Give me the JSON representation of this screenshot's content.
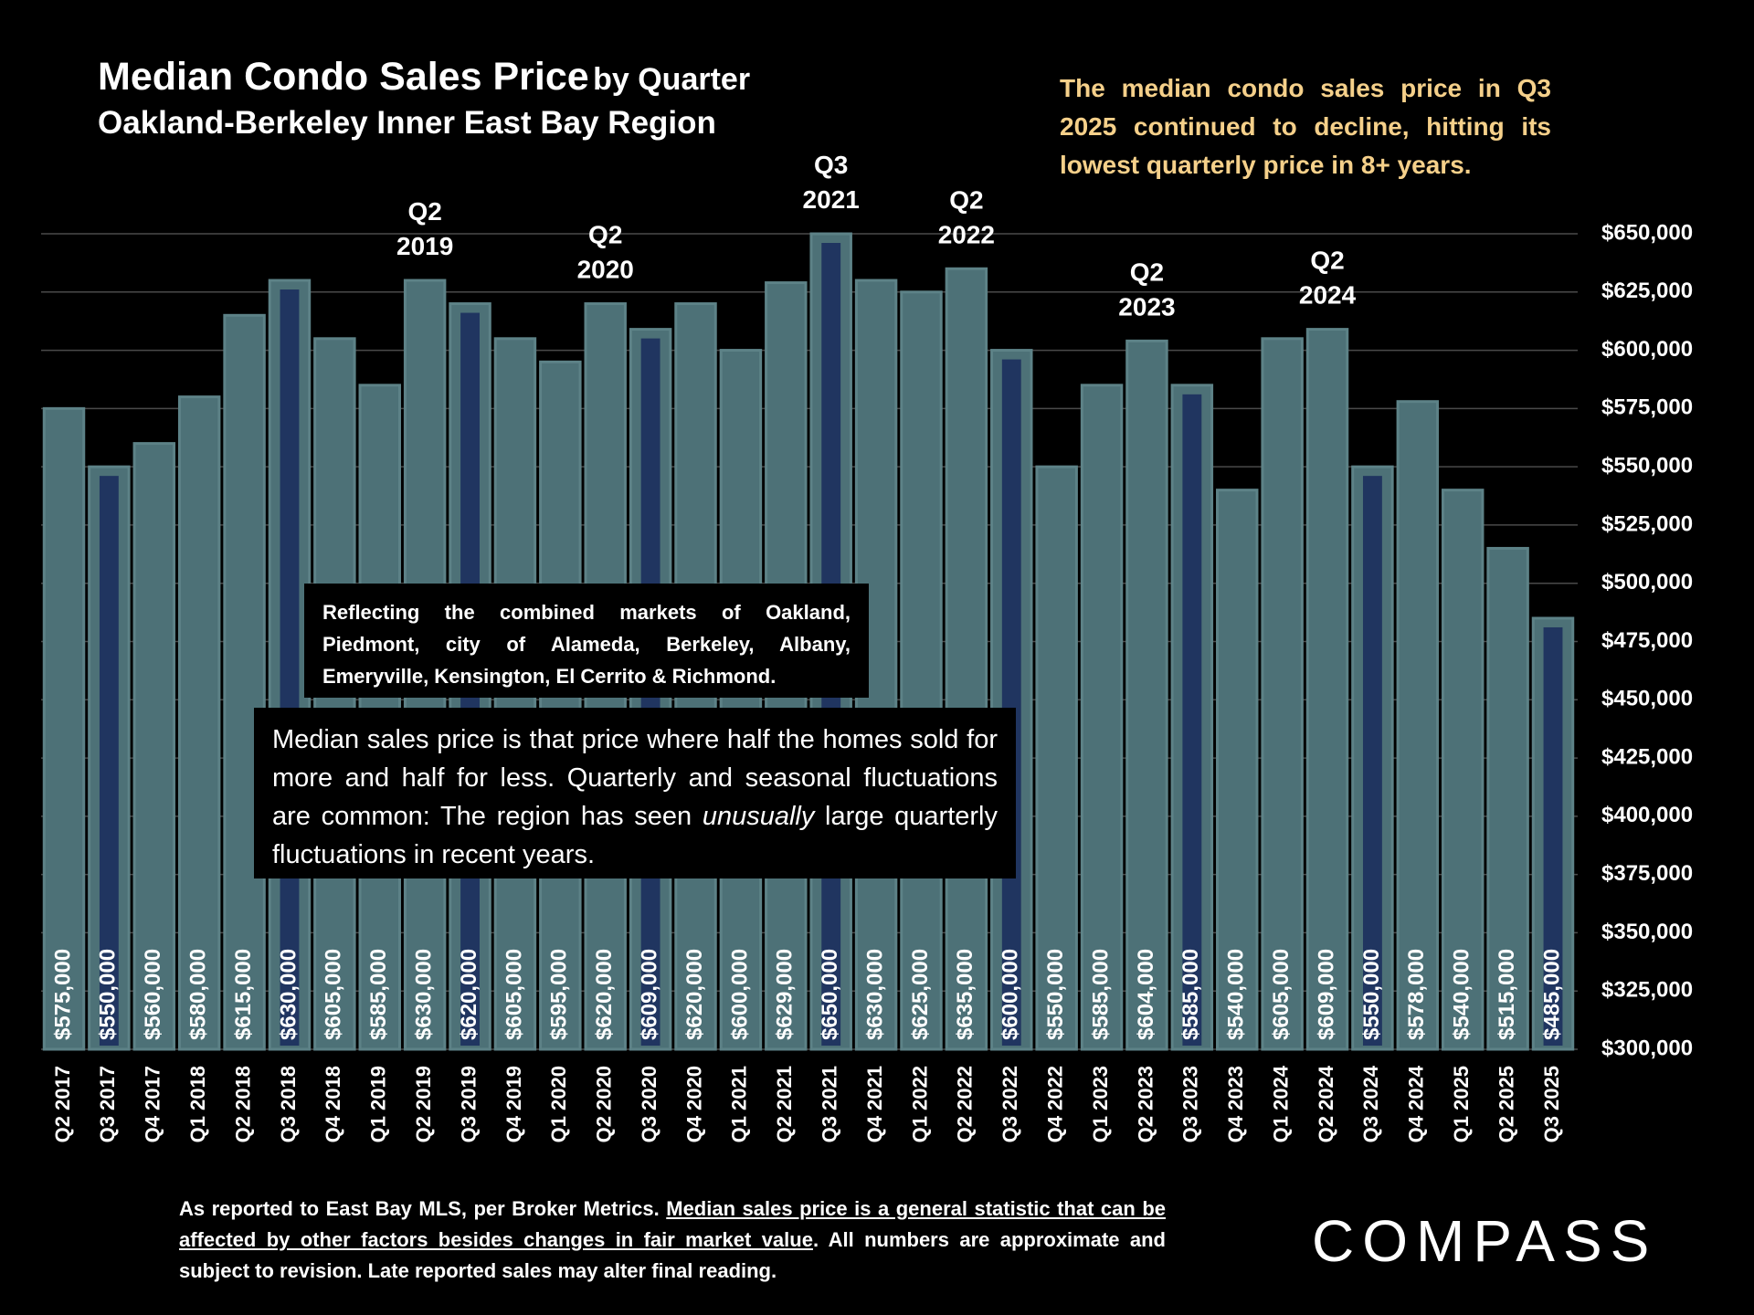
{
  "chart_data": {
    "type": "bar",
    "title": "Median Condo Sales Price",
    "title_suffix": "by Quarter",
    "subtitle": "Oakland-Berkeley Inner East Bay Region",
    "categories": [
      "Q2 2017",
      "Q3 2017",
      "Q4 2017",
      "Q1 2018",
      "Q2 2018",
      "Q3 2018",
      "Q4 2018",
      "Q1 2019",
      "Q2 2019",
      "Q3 2019",
      "Q4 2019",
      "Q1 2020",
      "Q2 2020",
      "Q3 2020",
      "Q4 2020",
      "Q1 2021",
      "Q2 2021",
      "Q3 2021",
      "Q4 2021",
      "Q1 2022",
      "Q2 2022",
      "Q3 2022",
      "Q4 2022",
      "Q1 2023",
      "Q2 2023",
      "Q3 2023",
      "Q4 2023",
      "Q1 2024",
      "Q2 2024",
      "Q3 2024",
      "Q4 2024",
      "Q1 2025",
      "Q2 2025",
      "Q3 2025"
    ],
    "values": [
      575000,
      550000,
      560000,
      580000,
      615000,
      630000,
      605000,
      585000,
      630000,
      620000,
      605000,
      595000,
      620000,
      609000,
      620000,
      600000,
      629000,
      650000,
      630000,
      625000,
      635000,
      600000,
      550000,
      585000,
      604000,
      585000,
      540000,
      605000,
      609000,
      550000,
      578000,
      540000,
      515000,
      485000
    ],
    "value_labels": [
      "$575,000",
      "$550,000",
      "$560,000",
      "$580,000",
      "$615,000",
      "$630,000",
      "$605,000",
      "$585,000",
      "$630,000",
      "$620,000",
      "$605,000",
      "$595,000",
      "$620,000",
      "$609,000",
      "$620,000",
      "$600,000",
      "$629,000",
      "$650,000",
      "$630,000",
      "$625,000",
      "$635,000",
      "$600,000",
      "$550,000",
      "$585,000",
      "$604,000",
      "$585,000",
      "$540,000",
      "$605,000",
      "$609,000",
      "$550,000",
      "$578,000",
      "$540,000",
      "$515,000",
      "$485,000"
    ],
    "color": "#4d7177",
    "highlight": {
      "color": "#203560",
      "indices": [
        1,
        5,
        9,
        13,
        17,
        21,
        25,
        29,
        33
      ]
    },
    "ylim": [
      300000,
      650000
    ],
    "yticks": [
      {
        "value": 300000,
        "label": "$300,000"
      },
      {
        "value": 325000,
        "label": "$325,000"
      },
      {
        "value": 350000,
        "label": "$350,000"
      },
      {
        "value": 375000,
        "label": "$375,000"
      },
      {
        "value": 400000,
        "label": "$400,000"
      },
      {
        "value": 425000,
        "label": "$425,000"
      },
      {
        "value": 450000,
        "label": "$450,000"
      },
      {
        "value": 475000,
        "label": "$475,000"
      },
      {
        "value": 500000,
        "label": "$500,000"
      },
      {
        "value": 525000,
        "label": "$525,000"
      },
      {
        "value": 550000,
        "label": "$550,000"
      },
      {
        "value": 575000,
        "label": "$575,000"
      },
      {
        "value": 600000,
        "label": "$600,000"
      },
      {
        "value": 625000,
        "label": "$625,000"
      },
      {
        "value": 650000,
        "label": "$650,000"
      }
    ],
    "grid": true,
    "peak_labels": [
      {
        "at": 8,
        "text": [
          "Q2",
          "2019"
        ]
      },
      {
        "at": 12,
        "text": [
          "Q2",
          "2020"
        ]
      },
      {
        "at": 17,
        "text": [
          "Q3",
          "2021"
        ]
      },
      {
        "at": 20,
        "text": [
          "Q2",
          "2022"
        ]
      },
      {
        "at": 24,
        "text": [
          "Q2",
          "2023"
        ]
      },
      {
        "at": 28,
        "text": [
          "Q2",
          "2024"
        ]
      }
    ],
    "commentary": "The median condo sales price in Q3 2025 continued to decline, hitting its lowest quarterly price in 8+ years.",
    "region_note": "Reflecting the combined markets of Oakland, Piedmont, city of Alameda, Berkeley, Albany, Emeryville, Kensington, El Cerrito & Richmond.",
    "definition_note": [
      "Median sales price is that price where half the homes sold for more and half for less. Quarterly and seasonal fluctuations are common: The region has seen ",
      "unusually",
      " large quarterly fluctuations in recent years."
    ],
    "footnote": [
      "As reported to East Bay MLS, per Broker Metrics. ",
      "Median sales price is a general statistic that can be affected by other factors besides changes in fair market value",
      ". All numbers are approximate and subject to revision. Late reported sales may alter final reading."
    ],
    "brand": "COMPASS"
  }
}
